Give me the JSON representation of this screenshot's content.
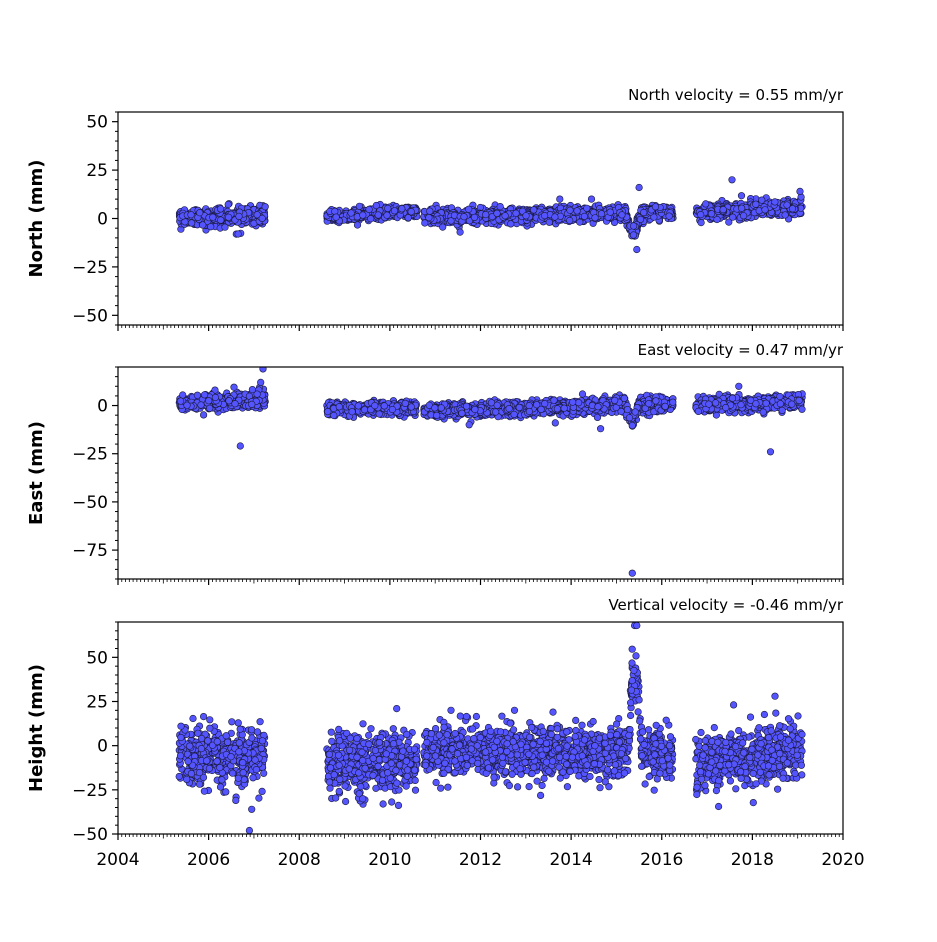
{
  "chart_data": [
    {
      "type": "scatter",
      "title": "North velocity = 0.55 mm/yr",
      "xlabel": "",
      "ylabel": "North (mm)",
      "xlim": [
        2004,
        2020
      ],
      "ylim": [
        -55,
        55
      ],
      "yticks": [
        50,
        25,
        0,
        -25,
        -50
      ],
      "xticks": [
        2004,
        2006,
        2008,
        2010,
        2012,
        2014,
        2016,
        2018,
        2020
      ],
      "show_xtick_labels": false,
      "grid": false,
      "marker_color": "#5555ff",
      "edge_color": "#1a1a3a",
      "segments": [
        {
          "start": 2005.35,
          "end": 2007.25,
          "y0": 0.5,
          "y1": 1.5,
          "noise": 2.2
        },
        {
          "start": 2008.6,
          "end": 2010.6,
          "y0": 1.0,
          "y1": 4.0,
          "noise": 1.4
        },
        {
          "start": 2010.75,
          "end": 2016.25,
          "y0": 0.5,
          "y1": 3.5,
          "noise": 1.8
        },
        {
          "start": 2016.75,
          "end": 2019.1,
          "y0": 3.0,
          "y1": 6.0,
          "noise": 2.0
        }
      ],
      "excursions": [
        {
          "x_start": 2015.2,
          "x_end": 2015.55,
          "offset": -10
        }
      ],
      "outliers": [
        [
          2006.65,
          -8
        ],
        [
          2011.55,
          -7
        ],
        [
          2015.5,
          16
        ],
        [
          2015.45,
          -16
        ],
        [
          2017.55,
          20
        ],
        [
          2013.75,
          10
        ],
        [
          2014.45,
          10
        ],
        [
          2019.05,
          14
        ]
      ]
    },
    {
      "type": "scatter",
      "title": "East velocity = 0.47 mm/yr",
      "xlabel": "",
      "ylabel": "East (mm)",
      "xlim": [
        2004,
        2020
      ],
      "ylim": [
        -90,
        20
      ],
      "yticks": [
        0,
        -25,
        -50,
        -75
      ],
      "xticks": [
        2004,
        2006,
        2008,
        2010,
        2012,
        2014,
        2016,
        2018,
        2020
      ],
      "show_xtick_labels": false,
      "grid": false,
      "marker_color": "#5555ff",
      "edge_color": "#1a1a3a",
      "segments": [
        {
          "start": 2005.35,
          "end": 2007.25,
          "y0": 1.0,
          "y1": 3.0,
          "noise": 2.0
        },
        {
          "start": 2008.6,
          "end": 2010.6,
          "y0": -2.0,
          "y1": -1.0,
          "noise": 1.6
        },
        {
          "start": 2010.75,
          "end": 2016.25,
          "y0": -3.0,
          "y1": 1.0,
          "noise": 1.8
        },
        {
          "start": 2016.75,
          "end": 2019.1,
          "y0": 0.0,
          "y1": 2.0,
          "noise": 1.8
        }
      ],
      "excursions": [
        {
          "x_start": 2015.2,
          "x_end": 2015.5,
          "offset": -8
        }
      ],
      "outliers": [
        [
          2007.2,
          19
        ],
        [
          2007.15,
          12
        ],
        [
          2006.7,
          -21
        ],
        [
          2015.35,
          -87
        ],
        [
          2018.4,
          -24
        ],
        [
          2017.7,
          10
        ],
        [
          2014.25,
          6
        ],
        [
          2014.65,
          -12
        ],
        [
          2011.75,
          -10
        ],
        [
          2013.65,
          -9
        ]
      ]
    },
    {
      "type": "scatter",
      "title": "Vertical velocity = -0.46 mm/yr",
      "xlabel": "",
      "ylabel": "Height (mm)",
      "xlim": [
        2004,
        2020
      ],
      "ylim": [
        -50,
        70
      ],
      "yticks": [
        50,
        25,
        0,
        -25,
        -50
      ],
      "xticks": [
        2004,
        2006,
        2008,
        2010,
        2012,
        2014,
        2016,
        2018,
        2020
      ],
      "xticklabels": [
        "2004",
        "2006",
        "2008",
        "2010",
        "2012",
        "2014",
        "2016",
        "2018",
        "2020"
      ],
      "show_xtick_labels": true,
      "grid": false,
      "marker_color": "#5555ff",
      "edge_color": "#1a1a3a",
      "segments": [
        {
          "start": 2005.35,
          "end": 2007.25,
          "y0": -5.0,
          "y1": -6.0,
          "noise": 8.0
        },
        {
          "start": 2008.6,
          "end": 2010.6,
          "y0": -10.0,
          "y1": -9.0,
          "noise": 8.0
        },
        {
          "start": 2010.75,
          "end": 2016.25,
          "y0": -2.0,
          "y1": -5.0,
          "noise": 7.0
        },
        {
          "start": 2016.75,
          "end": 2019.1,
          "y0": -10.0,
          "y1": -2.0,
          "noise": 8.0
        }
      ],
      "excursions": [
        {
          "x_start": 2015.25,
          "x_end": 2015.55,
          "offset": 45
        }
      ],
      "outliers": [
        [
          2006.9,
          -48
        ],
        [
          2006.95,
          -36
        ],
        [
          2006.6,
          -31
        ],
        [
          2010.15,
          21
        ],
        [
          2011.35,
          20
        ],
        [
          2012.75,
          20
        ],
        [
          2013.6,
          19
        ],
        [
          2018.5,
          28
        ],
        [
          2015.4,
          68
        ],
        [
          2015.45,
          68
        ],
        [
          2009.4,
          -30
        ],
        [
          2009.85,
          -33
        ]
      ]
    }
  ]
}
